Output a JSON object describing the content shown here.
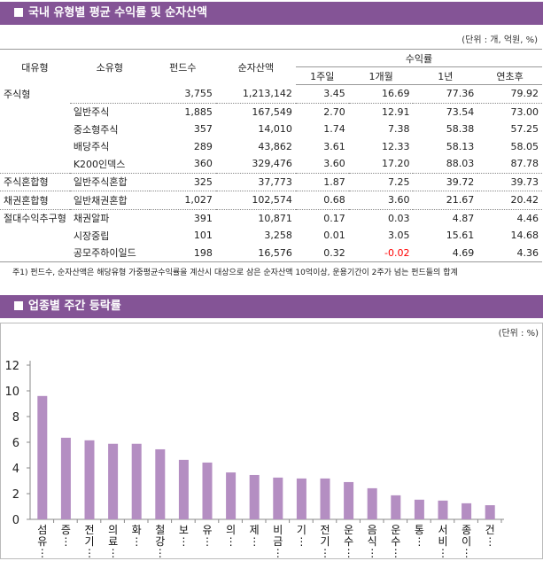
{
  "section1": {
    "title": "국내 유형별 평균 수익률 및 순자산액",
    "unit": "(단위 : 개, 억원, %)"
  },
  "table": {
    "headers": {
      "major": "대유형",
      "minor": "소유형",
      "funds": "펀드수",
      "assets": "순자산액",
      "returns": "수익률",
      "w1": "1주일",
      "m1": "1개월",
      "y1": "1년",
      "ytd": "연초후"
    },
    "rows": [
      {
        "major": "주식형",
        "minor": "",
        "funds": "3,755",
        "assets": "1,213,142",
        "w1": "3.45",
        "m1": "16.69",
        "y1": "77.36",
        "ytd": "79.92"
      },
      {
        "major": "",
        "minor": "일반주식",
        "funds": "1,885",
        "assets": "167,549",
        "w1": "2.70",
        "m1": "12.91",
        "y1": "73.54",
        "ytd": "73.00"
      },
      {
        "major": "",
        "minor": "중소형주식",
        "funds": "357",
        "assets": "14,010",
        "w1": "1.74",
        "m1": "7.38",
        "y1": "58.38",
        "ytd": "57.25"
      },
      {
        "major": "",
        "minor": "배당주식",
        "funds": "289",
        "assets": "43,862",
        "w1": "3.61",
        "m1": "12.33",
        "y1": "58.13",
        "ytd": "58.05"
      },
      {
        "major": "",
        "minor": "K200인덱스",
        "funds": "360",
        "assets": "329,476",
        "w1": "3.60",
        "m1": "17.20",
        "y1": "88.03",
        "ytd": "87.78"
      },
      {
        "major": "주식혼합형",
        "minor": "일반주식혼합",
        "funds": "325",
        "assets": "37,773",
        "w1": "1.87",
        "m1": "7.25",
        "y1": "39.72",
        "ytd": "39.73"
      },
      {
        "major": "채권혼합형",
        "minor": "일반채권혼합",
        "funds": "1,027",
        "assets": "102,574",
        "w1": "0.68",
        "m1": "3.60",
        "y1": "21.67",
        "ytd": "20.42"
      },
      {
        "major": "절대수익추구형",
        "minor": "채권알파",
        "funds": "391",
        "assets": "10,871",
        "w1": "0.17",
        "m1": "0.03",
        "y1": "4.87",
        "ytd": "4.46"
      },
      {
        "major": "",
        "minor": "시장중립",
        "funds": "101",
        "assets": "3,258",
        "w1": "0.01",
        "m1": "3.05",
        "y1": "15.61",
        "ytd": "14.68"
      },
      {
        "major": "",
        "minor": "공모주하이일드",
        "funds": "198",
        "assets": "16,576",
        "w1": "0.32",
        "m1": "-0.02",
        "y1": "4.69",
        "ytd": "4.36"
      }
    ],
    "note": "주1) 펀드수, 순자산액은 해당유형 가중평균수익률을 계산시 대상으로 삼은 순자산액 10억이상, 운용기간이 2주가 넘는 펀드들의 합계"
  },
  "section2": {
    "title": "업종별 주간 등락률",
    "unit": "(단위 : %)"
  },
  "chart_data": {
    "type": "bar",
    "categories": [
      "섬유…",
      "증…",
      "전기…",
      "의료…",
      "화…",
      "철강…",
      "보…",
      "유…",
      "의…",
      "제…",
      "비금…",
      "기…",
      "전기…",
      "운수…",
      "음식…",
      "운수…",
      "통…",
      "서비…",
      "종이…",
      "건…"
    ],
    "values": [
      9.6,
      6.35,
      6.15,
      5.88,
      5.88,
      5.45,
      4.63,
      4.42,
      3.65,
      3.45,
      3.25,
      3.18,
      3.18,
      2.9,
      2.42,
      1.87,
      1.53,
      1.46,
      1.25,
      1.1
    ],
    "ylim": [
      0,
      12
    ],
    "yticks": [
      0,
      2,
      4,
      6,
      8,
      10,
      12
    ],
    "grid": false,
    "bar_color": "#b48ec2",
    "title": "",
    "xlabel": "",
    "ylabel": ""
  },
  "colors": {
    "header": "#845496",
    "negative": "#ff0000"
  }
}
